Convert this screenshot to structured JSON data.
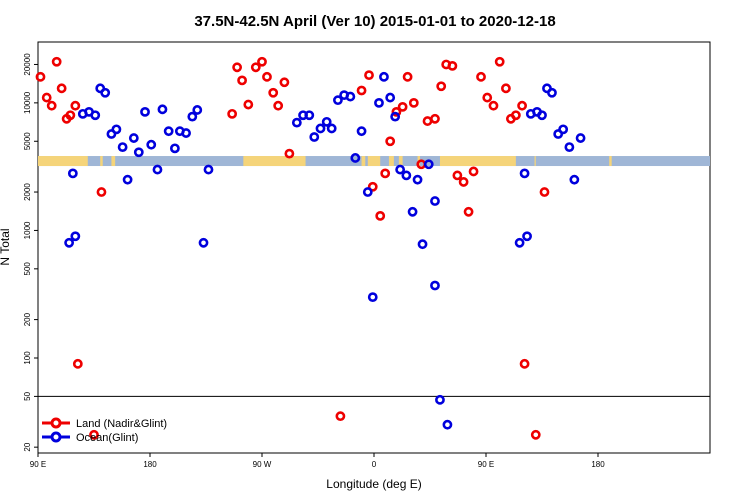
{
  "chart_data": {
    "type": "scatter",
    "title": "37.5N-42.5N April (Ver 10)   2015-01-01 to 2020-12-18",
    "xlabel": "Longitude (deg E)",
    "ylabel": "N Total",
    "xlim": [
      90,
      630
    ],
    "ylim_log": [
      18,
      30000
    ],
    "x_ticks": [
      {
        "value": 90,
        "label": "90 E"
      },
      {
        "value": 180,
        "label": "180"
      },
      {
        "value": 270,
        "label": "90 W"
      },
      {
        "value": 360,
        "label": "0"
      },
      {
        "value": 450,
        "label": "90 E"
      },
      {
        "value": 540,
        "label": "180"
      }
    ],
    "y_ticks": [
      20,
      50,
      100,
      200,
      500,
      1000,
      2000,
      5000,
      10000,
      20000
    ],
    "reference_line_y": 50,
    "colors": {
      "land": "#ee0000",
      "ocean": "#0000dd",
      "band_blue": "#9fb6d6",
      "band_yellow": "#f5d47a"
    },
    "surface_band": {
      "y": 3500,
      "land_segments": [
        [
          90,
          130
        ],
        [
          140,
          142
        ],
        [
          149,
          152
        ],
        [
          255,
          305
        ],
        [
          350,
          353
        ],
        [
          355,
          365
        ],
        [
          372,
          376
        ],
        [
          380,
          383
        ],
        [
          395,
          397
        ],
        [
          413,
          474
        ],
        [
          489,
          490
        ],
        [
          549,
          551
        ]
      ]
    },
    "series": [
      {
        "name": "Land (Nadir&Glint)",
        "color": "#ee0000",
        "points": [
          [
            92,
            16000
          ],
          [
            97,
            11000
          ],
          [
            101,
            9500
          ],
          [
            105,
            21000
          ],
          [
            109,
            13000
          ],
          [
            113,
            7500
          ],
          [
            116,
            8000
          ],
          [
            120,
            9500
          ],
          [
            122,
            90
          ],
          [
            135,
            25
          ],
          [
            141,
            2000
          ],
          [
            246,
            8200
          ],
          [
            250,
            19000
          ],
          [
            254,
            15000
          ],
          [
            259,
            9700
          ],
          [
            265,
            19000
          ],
          [
            270,
            21000
          ],
          [
            274,
            16000
          ],
          [
            279,
            12000
          ],
          [
            283,
            9500
          ],
          [
            288,
            14500
          ],
          [
            292,
            4000
          ],
          [
            333,
            35
          ],
          [
            350,
            12500
          ],
          [
            356,
            16500
          ],
          [
            359,
            2200
          ],
          [
            365,
            1300
          ],
          [
            369,
            2800
          ],
          [
            373,
            5000
          ],
          [
            378,
            8500
          ],
          [
            383,
            9300
          ],
          [
            387,
            16000
          ],
          [
            392,
            10000
          ],
          [
            398,
            3300
          ],
          [
            403,
            7200
          ],
          [
            409,
            7500
          ],
          [
            414,
            13500
          ],
          [
            418,
            20000
          ],
          [
            423,
            19500
          ],
          [
            427,
            2700
          ],
          [
            432,
            2400
          ],
          [
            436,
            1400
          ],
          [
            440,
            2900
          ],
          [
            446,
            16000
          ],
          [
            451,
            11000
          ],
          [
            456,
            9500
          ],
          [
            461,
            21000
          ],
          [
            466,
            13000
          ],
          [
            470,
            7500
          ],
          [
            474,
            8000
          ],
          [
            479,
            9500
          ],
          [
            481,
            90
          ],
          [
            490,
            25
          ],
          [
            497,
            2000
          ]
        ]
      },
      {
        "name": "Ocean(Glint)",
        "color": "#0000dd",
        "points": [
          [
            120,
            900
          ],
          [
            115,
            800
          ],
          [
            118,
            2800
          ],
          [
            126,
            8200
          ],
          [
            131,
            8500
          ],
          [
            136,
            8000
          ],
          [
            140,
            13000
          ],
          [
            144,
            12000
          ],
          [
            149,
            5700
          ],
          [
            153,
            6200
          ],
          [
            158,
            4500
          ],
          [
            162,
            2500
          ],
          [
            167,
            5300
          ],
          [
            171,
            4100
          ],
          [
            176,
            8500
          ],
          [
            181,
            4700
          ],
          [
            186,
            3000
          ],
          [
            190,
            8900
          ],
          [
            195,
            6000
          ],
          [
            200,
            4400
          ],
          [
            204,
            6000
          ],
          [
            209,
            5800
          ],
          [
            214,
            7800
          ],
          [
            218,
            8800
          ],
          [
            223,
            800
          ],
          [
            227,
            3000
          ],
          [
            298,
            7000
          ],
          [
            303,
            8000
          ],
          [
            308,
            8000
          ],
          [
            312,
            5400
          ],
          [
            317,
            6300
          ],
          [
            322,
            7100
          ],
          [
            326,
            6300
          ],
          [
            331,
            10500
          ],
          [
            336,
            11500
          ],
          [
            341,
            11200
          ],
          [
            345,
            3700
          ],
          [
            350,
            6000
          ],
          [
            355,
            2000
          ],
          [
            359,
            300
          ],
          [
            364,
            10000
          ],
          [
            368,
            16000
          ],
          [
            373,
            11000
          ],
          [
            377,
            7800
          ],
          [
            381,
            3000
          ],
          [
            386,
            2700
          ],
          [
            391,
            1400
          ],
          [
            395,
            2500
          ],
          [
            399,
            780
          ],
          [
            404,
            3300
          ],
          [
            409,
            1700
          ],
          [
            409,
            370
          ],
          [
            413,
            47
          ],
          [
            419,
            30
          ],
          [
            477,
            800
          ],
          [
            481,
            2800
          ],
          [
            483,
            900
          ],
          [
            486,
            8200
          ],
          [
            491,
            8500
          ],
          [
            495,
            8000
          ],
          [
            499,
            13000
          ],
          [
            503,
            12000
          ],
          [
            508,
            5700
          ],
          [
            512,
            6200
          ],
          [
            517,
            4500
          ],
          [
            521,
            2500
          ],
          [
            526,
            5300
          ]
        ]
      }
    ],
    "legend": {
      "position": "bottom-left",
      "entries": [
        {
          "label": "Land (Nadir&Glint)",
          "color": "#ee0000"
        },
        {
          "label": "Ocean(Glint)",
          "color": "#0000dd"
        }
      ]
    }
  }
}
